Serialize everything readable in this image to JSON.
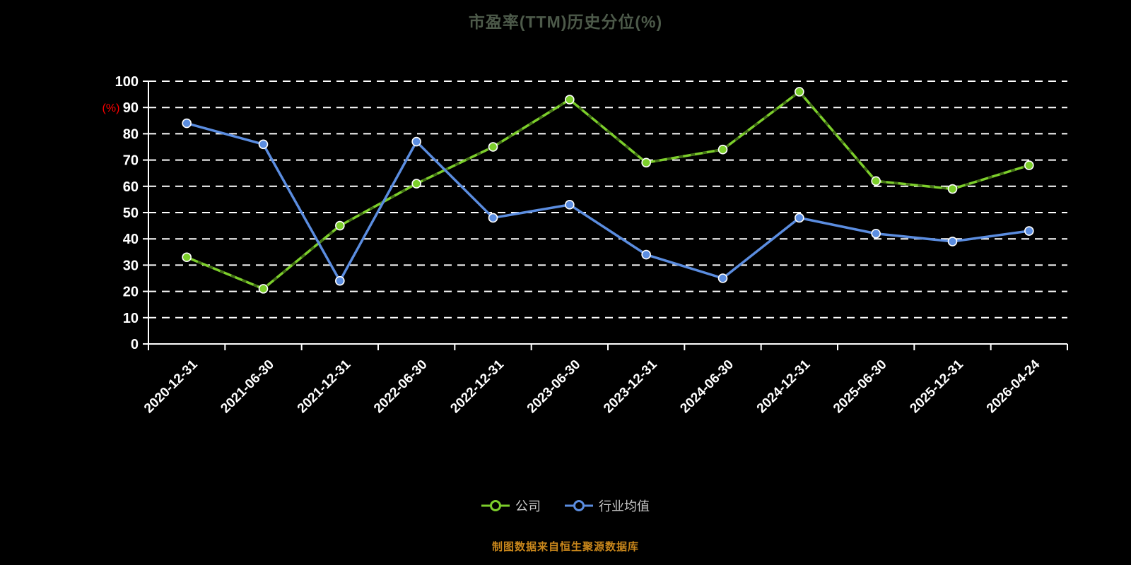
{
  "title": "市盈率(TTM)历史分位(%)",
  "footer": "制图数据来自恒生聚源数据库",
  "legend": [
    {
      "label": "公司",
      "color": "#7cce2b"
    },
    {
      "label": "行业均值",
      "color": "#5b8de0"
    }
  ],
  "colors": {
    "background": "#000000",
    "axis": "#ffffff",
    "ylabel": "#ff0000",
    "title": "#4d5a4a",
    "footer": "#c8861b",
    "company_series": "#7cce2b",
    "industry_series": "#5b8de0"
  },
  "chart_data": {
    "type": "line",
    "title": "市盈率(TTM)历史分位(%)",
    "xlabel": "",
    "ylabel": "(%)",
    "ylim": [
      0,
      100
    ],
    "yticks": [
      0,
      10,
      20,
      30,
      40,
      50,
      60,
      70,
      80,
      90,
      100
    ],
    "grid": "horizontal-dashed",
    "legend_position": "bottom",
    "categories": [
      "2020-12-31",
      "2021-06-30",
      "2021-12-31",
      "2022-06-30",
      "2022-12-31",
      "2023-06-30",
      "2023-12-31",
      "2024-06-30",
      "2024-12-31",
      "2025-06-30",
      "2025-12-31",
      "2026-04-24"
    ],
    "series": [
      {
        "name": "公司",
        "color": "#7cce2b",
        "values": [
          33,
          21,
          45,
          61,
          75,
          93,
          69,
          74,
          96,
          62,
          59,
          68
        ]
      },
      {
        "name": "行业均值",
        "color": "#5b8de0",
        "values": [
          84,
          76,
          24,
          77,
          48,
          53,
          34,
          25,
          48,
          42,
          39,
          43
        ]
      }
    ]
  }
}
